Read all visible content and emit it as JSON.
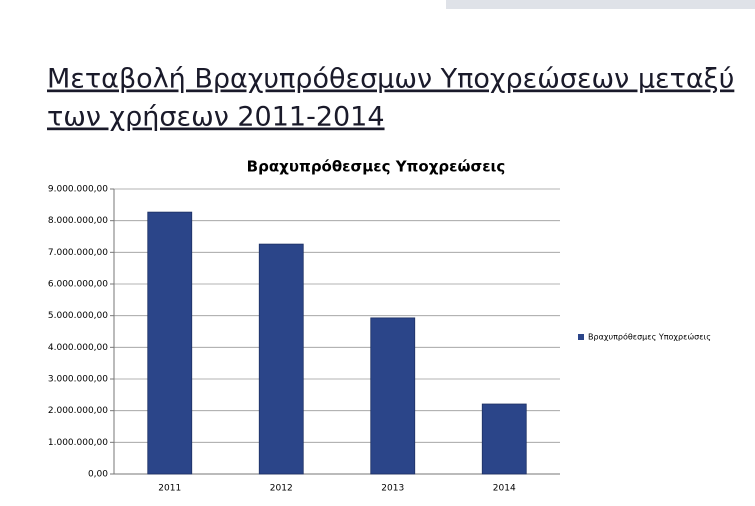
{
  "heading": [
    "Μεταβολή Βραχυπρόθεσμων Υποχρεώσεων μεταξύ",
    "των χρήσεων 2011-2014"
  ],
  "chart_data": {
    "type": "bar",
    "title": "Βραχυπρόθεσμες Υποχρεώσεις",
    "categories": [
      "2011",
      "2012",
      "2013",
      "2014"
    ],
    "series": [
      {
        "name": "Βραχυπρόθεσμες Υποχρεώσεις",
        "color": "#2b4589",
        "values": [
          8270000,
          7260000,
          4930000,
          2210000
        ]
      }
    ],
    "ylim": [
      0,
      9000000
    ],
    "yticks": [
      {
        "value": 0,
        "label": "0,00"
      },
      {
        "value": 1000000,
        "label": "1.000.000,00"
      },
      {
        "value": 2000000,
        "label": "2.000.000,00"
      },
      {
        "value": 3000000,
        "label": "3.000.000,00"
      },
      {
        "value": 4000000,
        "label": "4.000.000,00"
      },
      {
        "value": 5000000,
        "label": "5.000.000,00"
      },
      {
        "value": 6000000,
        "label": "6.000.000,00"
      },
      {
        "value": 7000000,
        "label": "7.000.000,00"
      },
      {
        "value": 8000000,
        "label": "8.000.000,00"
      },
      {
        "value": 9000000,
        "label": "9.000.000,00"
      }
    ],
    "grid": true,
    "legend": "right"
  }
}
